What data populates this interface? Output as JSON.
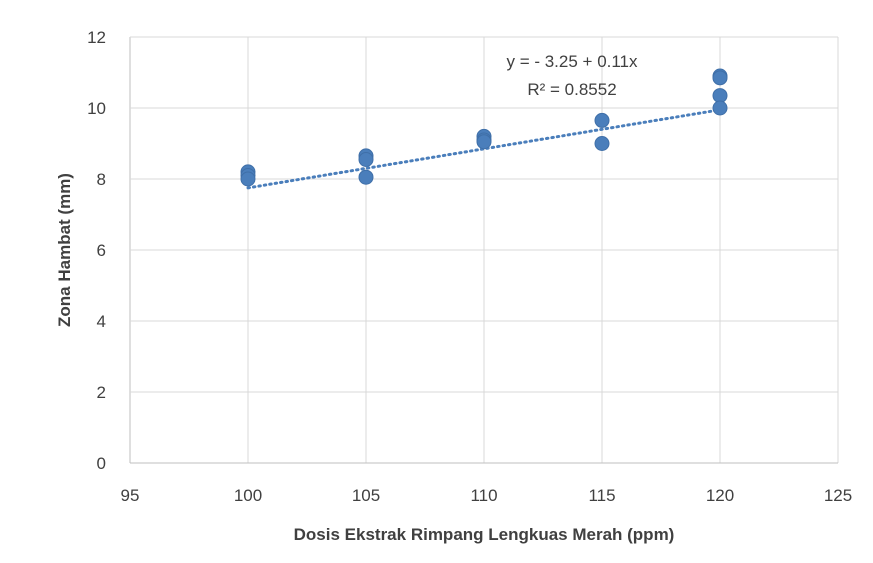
{
  "chart_data": {
    "type": "scatter",
    "title": "",
    "xlabel": "Dosis Ekstrak Rimpang Lengkuas Merah (ppm)",
    "ylabel": "Zona Hambat (mm)",
    "xlim": [
      95,
      125
    ],
    "ylim": [
      0,
      12
    ],
    "xticks": [
      95,
      100,
      105,
      110,
      115,
      120,
      125
    ],
    "yticks": [
      0,
      2,
      4,
      6,
      8,
      10,
      12
    ],
    "grid": true,
    "colors": {
      "points": "#4a7ebb",
      "trendline": "#4a7ebb",
      "grid": "#d9d9d9"
    },
    "series": [
      {
        "points": [
          {
            "x": 100,
            "y": 8.2
          },
          {
            "x": 100,
            "y": 8.1
          },
          {
            "x": 100,
            "y": 8.0
          },
          {
            "x": 105,
            "y": 8.65
          },
          {
            "x": 105,
            "y": 8.55
          },
          {
            "x": 105,
            "y": 8.05
          },
          {
            "x": 110,
            "y": 9.2
          },
          {
            "x": 110,
            "y": 9.1
          },
          {
            "x": 110,
            "y": 9.05
          },
          {
            "x": 115,
            "y": 9.65
          },
          {
            "x": 115,
            "y": 9.0
          },
          {
            "x": 120,
            "y": 10.9
          },
          {
            "x": 120,
            "y": 10.85
          },
          {
            "x": 120,
            "y": 10.35
          },
          {
            "x": 120,
            "y": 10.0
          }
        ]
      }
    ],
    "trendline": {
      "type": "linear",
      "intercept": -3.25,
      "slope": 0.11,
      "x_range": [
        100,
        120
      ],
      "equation_label": "y = - 3.25 +  0.11x",
      "r2_label": "R² = 0.8552"
    }
  }
}
